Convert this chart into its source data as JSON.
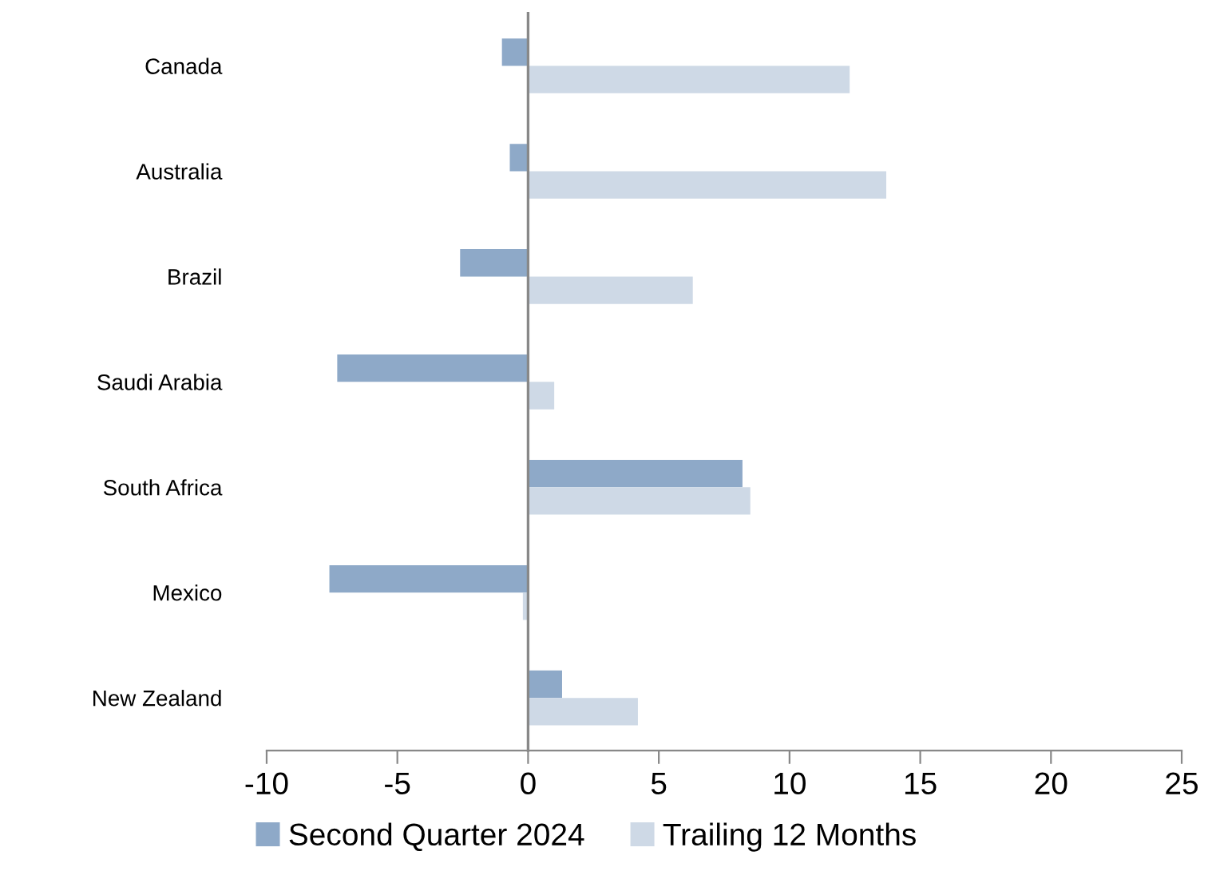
{
  "chart_data": {
    "type": "bar",
    "orientation": "horizontal",
    "categories": [
      "Canada",
      "Australia",
      "Brazil",
      "Saudi Arabia",
      "South Africa",
      "Mexico",
      "New Zealand"
    ],
    "series": [
      {
        "name": "Second Quarter 2024",
        "color": "#8ea9c8",
        "values": [
          -1.0,
          -0.7,
          -2.6,
          -7.3,
          8.2,
          -7.6,
          1.3
        ]
      },
      {
        "name": "Trailing 12 Months",
        "color": "#ced9e6",
        "values": [
          12.3,
          13.7,
          6.3,
          1.0,
          8.5,
          -0.2,
          4.2
        ]
      }
    ],
    "xlim": [
      -10,
      25
    ],
    "xticks": [
      -10,
      -5,
      0,
      5,
      10,
      15,
      20,
      25
    ],
    "legend": "bottom"
  }
}
